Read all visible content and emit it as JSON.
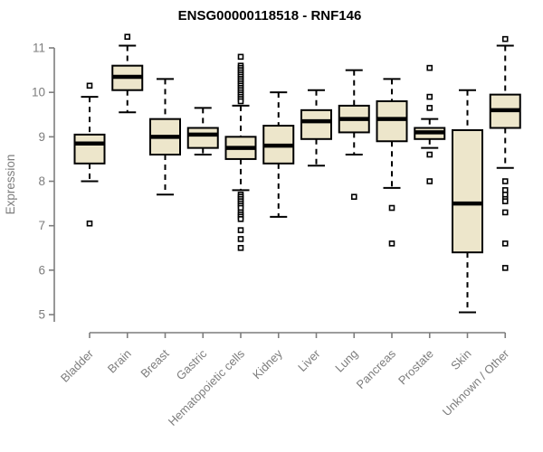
{
  "chart_data": {
    "type": "box",
    "title": "ENSG00000118518 - RNF146",
    "xlabel": "",
    "ylabel": "Expression",
    "ylim": [
      5,
      11
    ],
    "yticks": [
      5,
      6,
      7,
      8,
      9,
      10,
      11
    ],
    "grid": false,
    "legend": null,
    "categories": [
      "Bladder",
      "Brain",
      "Breast",
      "Gastric",
      "Hematopoietic cells",
      "Kidney",
      "Liver",
      "Lung",
      "Pancreas",
      "Prostate",
      "Skin",
      "Unknown / Other"
    ],
    "boxes": [
      {
        "category": "Bladder",
        "whisker_low": 8.0,
        "q1": 8.4,
        "median": 8.85,
        "q3": 9.05,
        "whisker_high": 9.9,
        "outliers": [
          10.15,
          7.05
        ]
      },
      {
        "category": "Brain",
        "whisker_low": 9.55,
        "q1": 10.05,
        "median": 10.35,
        "q3": 10.6,
        "whisker_high": 11.05,
        "outliers": [
          11.25
        ]
      },
      {
        "category": "Breast",
        "whisker_low": 7.7,
        "q1": 8.6,
        "median": 9.0,
        "q3": 9.4,
        "whisker_high": 10.3,
        "outliers": []
      },
      {
        "category": "Gastric",
        "whisker_low": 8.6,
        "q1": 8.75,
        "median": 9.05,
        "q3": 9.2,
        "whisker_high": 9.65,
        "outliers": []
      },
      {
        "category": "Hematopoietic cells",
        "whisker_low": 7.8,
        "q1": 8.5,
        "median": 8.75,
        "q3": 9.0,
        "whisker_high": 9.7,
        "outliers": [
          10.8,
          10.6,
          10.55,
          10.5,
          10.45,
          10.4,
          10.35,
          10.3,
          10.25,
          10.2,
          10.15,
          10.1,
          10.05,
          10.0,
          9.95,
          9.9,
          9.85,
          9.8,
          7.7,
          7.65,
          7.6,
          7.55,
          7.5,
          7.45,
          7.4,
          7.3,
          7.25,
          7.2,
          7.15,
          6.9,
          6.7,
          6.5
        ]
      },
      {
        "category": "Kidney",
        "whisker_low": 7.2,
        "q1": 8.4,
        "median": 8.8,
        "q3": 9.25,
        "whisker_high": 10.0,
        "outliers": []
      },
      {
        "category": "Liver",
        "whisker_low": 8.35,
        "q1": 8.95,
        "median": 9.35,
        "q3": 9.6,
        "whisker_high": 10.05,
        "outliers": []
      },
      {
        "category": "Lung",
        "whisker_low": 8.6,
        "q1": 9.1,
        "median": 9.4,
        "q3": 9.7,
        "whisker_high": 10.5,
        "outliers": [
          7.65
        ]
      },
      {
        "category": "Pancreas",
        "whisker_low": 7.85,
        "q1": 8.9,
        "median": 9.4,
        "q3": 9.8,
        "whisker_high": 10.3,
        "outliers": [
          7.4,
          6.6
        ]
      },
      {
        "category": "Prostate",
        "whisker_low": 8.75,
        "q1": 8.95,
        "median": 9.1,
        "q3": 9.2,
        "whisker_high": 9.4,
        "outliers": [
          10.55,
          9.9,
          9.65,
          8.6,
          8.0
        ]
      },
      {
        "category": "Skin",
        "whisker_low": 5.05,
        "q1": 6.4,
        "median": 7.5,
        "q3": 9.15,
        "whisker_high": 10.05,
        "outliers": []
      },
      {
        "category": "Unknown / Other",
        "whisker_low": 8.3,
        "q1": 9.2,
        "median": 9.6,
        "q3": 9.95,
        "whisker_high": 11.05,
        "outliers": [
          11.2,
          8.0,
          7.8,
          7.7,
          7.6,
          7.55,
          7.3,
          6.6,
          6.05
        ]
      }
    ],
    "colors": {
      "box_fill": "#EDE6CB",
      "box_border": "#000000",
      "median": "#000000",
      "whisker": "#000000",
      "outlier_fill": "#ffffff",
      "outlier_border": "#000000",
      "axis_line": "#7d7d7d",
      "tick_text": "#7d7d7d",
      "title_text": "#000000",
      "background": "#ffffff"
    }
  }
}
